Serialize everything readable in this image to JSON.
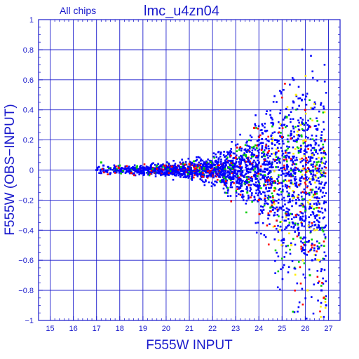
{
  "chart_data": {
    "type": "scatter",
    "title": "lmc_u4zn04",
    "subtitle": "All chips",
    "xlabel": "F555W INPUT",
    "ylabel": "F555W (OBS−INPUT)",
    "xlim": [
      14.5,
      27.5
    ],
    "ylim": [
      -1,
      1
    ],
    "xticks": [
      15,
      16,
      17,
      18,
      19,
      20,
      21,
      22,
      23,
      24,
      25,
      26,
      27
    ],
    "yticks": [
      -1,
      -0.8,
      -0.6,
      -0.4,
      -0.2,
      0,
      0.2,
      0.4,
      0.6,
      0.8,
      1
    ],
    "ytick_labels": [
      "−1",
      "−0.8",
      "−0.6",
      "−0.4",
      "−0.2",
      "0",
      "0.2",
      "0.4",
      "0.6",
      "0.8",
      "1"
    ],
    "grid": true,
    "series": [
      {
        "color": "#0000ff",
        "values": [
          [
            17.0,
            0.0
          ],
          [
            17.1,
            0.02
          ],
          [
            17.2,
            -0.02
          ],
          [
            17.3,
            0.03
          ],
          [
            17.4,
            -0.01
          ],
          [
            17.5,
            0.02
          ],
          [
            17.6,
            -0.02
          ],
          [
            17.8,
            0.01
          ],
          [
            18.0,
            -0.01
          ],
          [
            18.3,
            0.01
          ],
          [
            18.6,
            0.0
          ],
          [
            19.0,
            0.01
          ],
          [
            19.5,
            -0.01
          ],
          [
            20.0,
            0.01
          ],
          [
            20.5,
            -0.01
          ],
          [
            21.0,
            0.02
          ],
          [
            21.5,
            -0.02
          ],
          [
            22.0,
            0.03
          ],
          [
            22.3,
            -0.04
          ],
          [
            22.6,
            0.05
          ],
          [
            22.9,
            -0.06
          ],
          [
            23.2,
            0.07
          ],
          [
            23.5,
            -0.08
          ],
          [
            23.8,
            0.1
          ],
          [
            24.0,
            -0.12
          ],
          [
            24.3,
            0.15
          ],
          [
            24.5,
            -0.18
          ],
          [
            24.7,
            0.2
          ],
          [
            24.9,
            -0.25
          ],
          [
            25.1,
            0.3
          ],
          [
            25.3,
            -0.3
          ],
          [
            25.5,
            0.45
          ],
          [
            25.7,
            -0.4
          ],
          [
            25.9,
            0.5
          ],
          [
            26.0,
            -0.5
          ],
          [
            26.1,
            0.3
          ],
          [
            26.3,
            -0.6
          ],
          [
            26.5,
            -0.3
          ],
          [
            26.7,
            -0.8
          ],
          [
            26.9,
            -0.9
          ],
          [
            25.5,
            0.6
          ],
          [
            24.0,
            0.2
          ]
        ]
      },
      {
        "color": "#ffee00",
        "values": [
          [
            25.3,
            0.8
          ],
          [
            25.6,
            0.5
          ],
          [
            25.8,
            0.3
          ],
          [
            26.0,
            0.2
          ],
          [
            26.2,
            -0.2
          ],
          [
            26.4,
            -0.4
          ],
          [
            26.6,
            -0.6
          ],
          [
            25.9,
            -0.6
          ],
          [
            26.1,
            -0.8
          ],
          [
            25.4,
            -0.5
          ],
          [
            24.9,
            -0.4
          ],
          [
            26.3,
            0.1
          ]
        ]
      },
      {
        "color": "#00cc00",
        "values": [
          [
            17.2,
            0.05
          ],
          [
            18.0,
            0.03
          ],
          [
            22.5,
            -0.05
          ],
          [
            23.5,
            -0.15
          ],
          [
            24.5,
            -0.25
          ],
          [
            25.2,
            0.35
          ],
          [
            25.8,
            -0.45
          ],
          [
            26.2,
            -0.7
          ],
          [
            26.5,
            0.05
          ],
          [
            24.2,
            0.12
          ]
        ]
      },
      {
        "color": "#ff0000",
        "values": [
          [
            18.5,
            -0.02
          ],
          [
            21.0,
            0.04
          ],
          [
            23.0,
            0.08
          ],
          [
            24.0,
            -0.2
          ],
          [
            25.0,
            0.22
          ],
          [
            25.6,
            -0.3
          ],
          [
            26.0,
            0.4
          ],
          [
            26.4,
            -0.5
          ],
          [
            26.8,
            -0.85
          ],
          [
            23.8,
            0.28
          ]
        ]
      }
    ]
  }
}
